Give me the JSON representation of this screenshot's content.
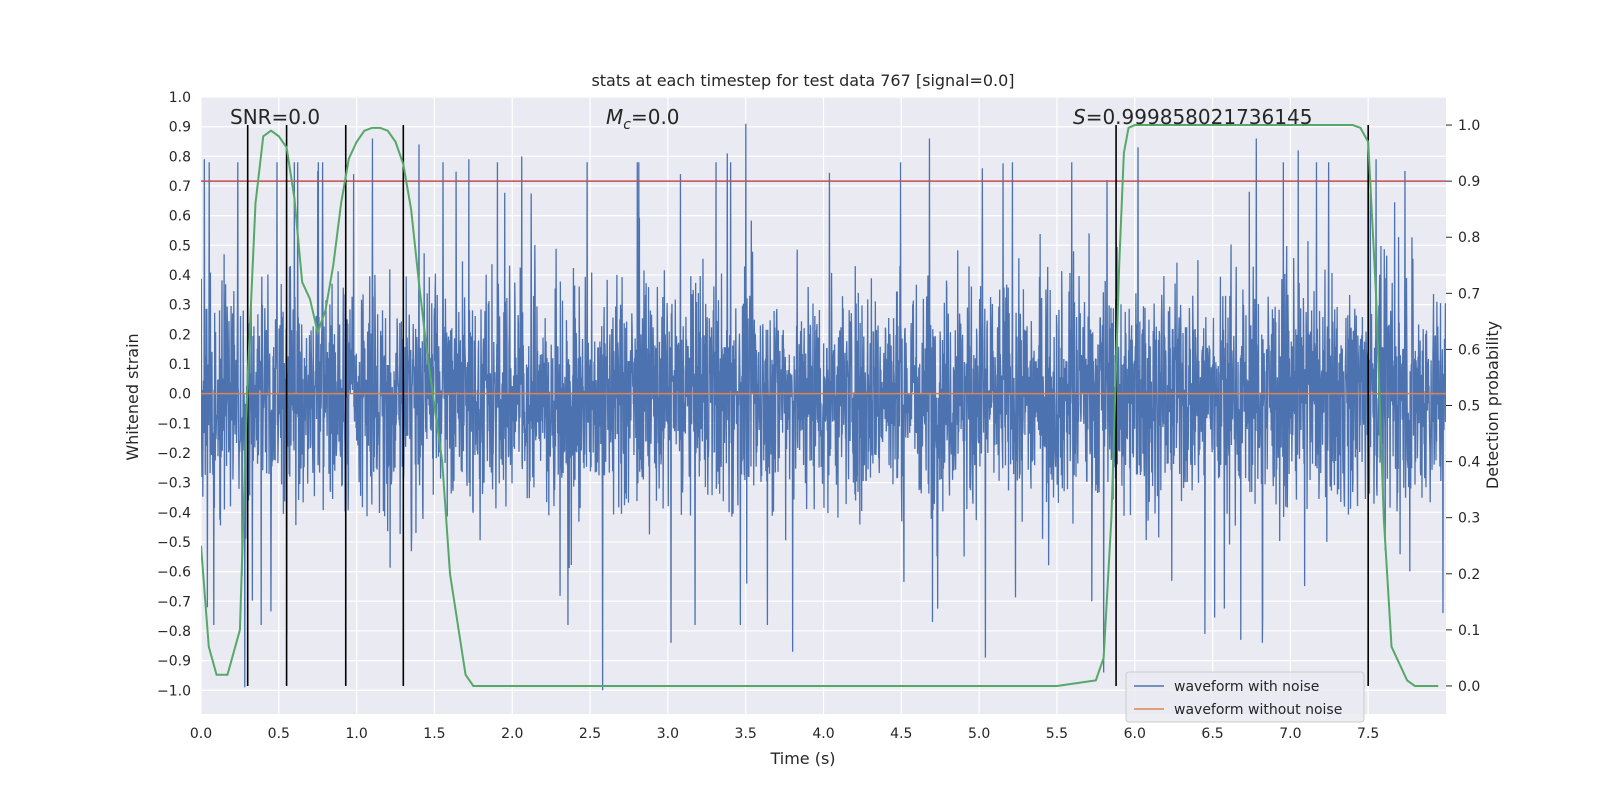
{
  "chart_data": {
    "type": "line",
    "title": "stats at each timestep for test data 767 [signal=0.0]",
    "xlabel": "Time (s)",
    "ylabel_left": "Whitened strain",
    "ylabel_right": "Detection probability",
    "xlim": [
      0.0,
      8.0
    ],
    "ylim_left": [
      -1.08,
      1.0
    ],
    "ylim_right": [
      -0.05,
      1.05
    ],
    "x_ticks": [
      "0.0",
      "0.5",
      "1.0",
      "1.5",
      "2.0",
      "2.5",
      "3.0",
      "3.5",
      "4.0",
      "4.5",
      "5.0",
      "5.5",
      "6.0",
      "6.5",
      "7.0",
      "7.5"
    ],
    "y_ticks_left": [
      "1.0",
      "0.9",
      "0.8",
      "0.7",
      "0.6",
      "0.5",
      "0.4",
      "0.3",
      "0.2",
      "0.1",
      "0.0",
      "-0.1",
      "-0.2",
      "-0.3",
      "-0.4",
      "-0.5",
      "-0.6",
      "-0.7",
      "-0.8",
      "-0.9",
      "-1.0"
    ],
    "y_ticks_right": [
      "1.0",
      "0.9",
      "0.8",
      "0.7",
      "0.6",
      "0.5",
      "0.4",
      "0.3",
      "0.2",
      "0.1",
      "0.0"
    ],
    "grid": true,
    "annotations": {
      "snr": "SNR=0.0",
      "mc_symbol": "M",
      "mc_sub": "c",
      "mc_value": "=0.0",
      "s_symbol": "S",
      "s_value": "=0.999858021736145"
    },
    "threshold_line": {
      "y": 0.9,
      "axis": "right",
      "color": "#c44e52"
    },
    "vertical_lines": [
      0.3,
      0.55,
      0.93,
      1.3,
      5.88,
      7.5
    ],
    "series": [
      {
        "name": "waveform with noise",
        "color": "#4c72b0",
        "axis": "left",
        "description_stats": {
          "n_points": 4096,
          "envelope_abs": 0.9,
          "core_abs": 0.33
        },
        "peaks": [
          [
            0.02,
            0.79
          ],
          [
            0.04,
            -0.72
          ],
          [
            0.28,
            -0.99
          ],
          [
            0.55,
            -0.81
          ],
          [
            0.62,
            0.78
          ],
          [
            0.75,
            0.75
          ],
          [
            0.98,
            0.74
          ],
          [
            1.1,
            0.86
          ],
          [
            1.4,
            0.84
          ],
          [
            1.72,
            0.79
          ],
          [
            2.06,
            0.8
          ],
          [
            2.58,
            -1.0
          ],
          [
            3.02,
            -0.84
          ],
          [
            3.08,
            0.74
          ],
          [
            3.38,
            0.81
          ],
          [
            3.5,
            0.91
          ],
          [
            3.8,
            -0.87
          ],
          [
            4.68,
            0.86
          ],
          [
            4.7,
            -0.77
          ],
          [
            5.04,
            -0.89
          ],
          [
            5.02,
            0.76
          ],
          [
            5.8,
            -0.94
          ],
          [
            5.82,
            0.72
          ],
          [
            6.02,
            0.83
          ],
          [
            6.45,
            -0.81
          ],
          [
            6.78,
            0.86
          ],
          [
            6.82,
            -0.84
          ],
          [
            6.68,
            -0.83
          ],
          [
            7.05,
            0.82
          ],
          [
            7.55,
            0.79
          ],
          [
            7.98,
            -0.74
          ]
        ]
      },
      {
        "name": "waveform without noise",
        "color": "#dd8452",
        "axis": "left",
        "values_constant": 0.0
      },
      {
        "name": "detection probability",
        "color": "#55a868",
        "axis": "right",
        "x": [
          0.0,
          0.05,
          0.1,
          0.17,
          0.25,
          0.3,
          0.35,
          0.4,
          0.45,
          0.5,
          0.55,
          0.6,
          0.65,
          0.7,
          0.75,
          0.8,
          0.85,
          0.9,
          0.95,
          1.0,
          1.05,
          1.1,
          1.15,
          1.2,
          1.25,
          1.3,
          1.35,
          1.4,
          1.45,
          1.5,
          1.55,
          1.6,
          1.7,
          1.75,
          1.8,
          2.0,
          3.0,
          4.0,
          5.0,
          5.5,
          5.75,
          5.8,
          5.85,
          5.9,
          5.93,
          5.96,
          6.0,
          6.5,
          7.0,
          7.4,
          7.45,
          7.5,
          7.55,
          7.6,
          7.65,
          7.75,
          7.8,
          7.9,
          7.95
        ],
        "values": [
          0.25,
          0.07,
          0.02,
          0.02,
          0.1,
          0.55,
          0.86,
          0.98,
          0.99,
          0.98,
          0.96,
          0.87,
          0.72,
          0.69,
          0.63,
          0.67,
          0.75,
          0.86,
          0.94,
          0.97,
          0.99,
          0.995,
          0.995,
          0.99,
          0.97,
          0.93,
          0.85,
          0.72,
          0.6,
          0.5,
          0.4,
          0.2,
          0.02,
          0.0,
          0.0,
          0.0,
          0.0,
          0.0,
          0.0,
          0.0,
          0.01,
          0.05,
          0.3,
          0.75,
          0.95,
          0.995,
          1.0,
          1.0,
          1.0,
          1.0,
          0.995,
          0.97,
          0.7,
          0.3,
          0.07,
          0.01,
          0.0,
          0.0,
          0.0
        ]
      }
    ],
    "legend": {
      "placement": "lower-right",
      "entries": [
        {
          "label": "waveform with noise",
          "color": "#4c72b0"
        },
        {
          "label": "waveform without noise",
          "color": "#dd8452"
        }
      ]
    },
    "colors": {
      "plot_bg": "#eaeaf2",
      "grid": "#ffffff",
      "vline": "#000000",
      "text": "#262626"
    }
  }
}
